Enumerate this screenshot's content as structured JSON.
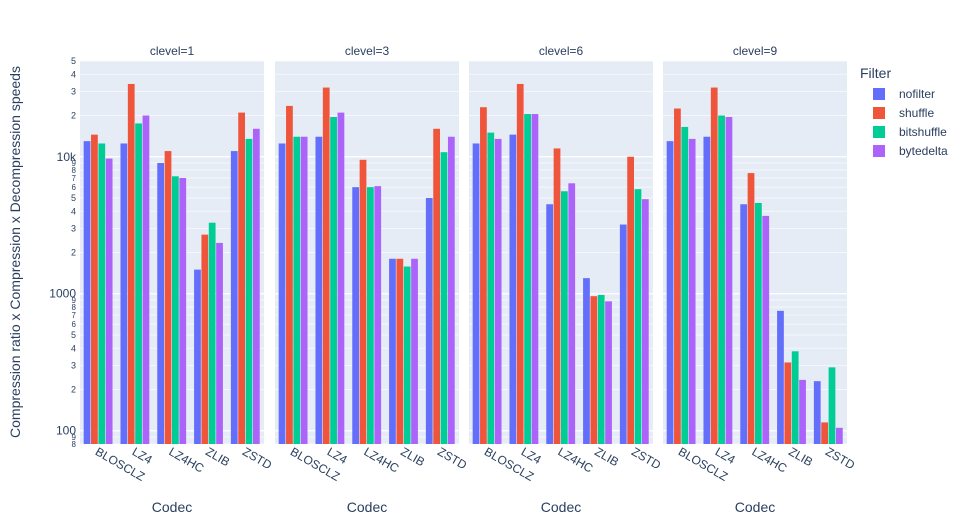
{
  "chart_data": {
    "type": "bar",
    "layout": "faceted",
    "yscale": "log",
    "ylabel": "Compression ratio x Compression x Decompression speeds",
    "xlabel": "Codec",
    "categories": [
      "BLOSCLZ",
      "LZ4",
      "LZ4HC",
      "ZLIB",
      "ZSTD"
    ],
    "legend": {
      "title": "Filter",
      "position": "right",
      "entries": [
        "nofilter",
        "shuffle",
        "bitshuffle",
        "bytedelta"
      ]
    },
    "colors": {
      "nofilter": "#636efa",
      "shuffle": "#ef553b",
      "bitshuffle": "#00cc96",
      "bytedelta": "#ab63fa"
    },
    "ylim": [
      80,
      50000
    ],
    "y_major_ticks": [
      {
        "value": 100,
        "label": "100"
      },
      {
        "value": 1000,
        "label": "1000"
      },
      {
        "value": 10000,
        "label": "10k"
      }
    ],
    "y_minor_labels": [
      "2",
      "3",
      "4",
      "5",
      "6",
      "7",
      "8",
      "9"
    ],
    "grid": true,
    "facets": [
      {
        "title": "clevel=1",
        "series": [
          {
            "name": "nofilter",
            "values": [
              13000,
              12500,
              9000,
              1500,
              11000
            ]
          },
          {
            "name": "shuffle",
            "values": [
              14500,
              34000,
              11000,
              2700,
              21000
            ]
          },
          {
            "name": "bitshuffle",
            "values": [
              12500,
              17500,
              7200,
              3300,
              13500
            ]
          },
          {
            "name": "bytedelta",
            "values": [
              9700,
              20000,
              7000,
              2350,
              16000
            ]
          }
        ]
      },
      {
        "title": "clevel=3",
        "series": [
          {
            "name": "nofilter",
            "values": [
              12500,
              14000,
              6000,
              1800,
              5000
            ]
          },
          {
            "name": "shuffle",
            "values": [
              23500,
              32000,
              9500,
              1800,
              16000
            ]
          },
          {
            "name": "bitshuffle",
            "values": [
              14000,
              19500,
              6000,
              1580,
              10800
            ]
          },
          {
            "name": "bytedelta",
            "values": [
              14000,
              21000,
              6100,
              1800,
              14000
            ]
          }
        ]
      },
      {
        "title": "clevel=6",
        "series": [
          {
            "name": "nofilter",
            "values": [
              12500,
              14500,
              4500,
              1300,
              3200
            ]
          },
          {
            "name": "shuffle",
            "values": [
              23000,
              34000,
              11500,
              960,
              10000
            ]
          },
          {
            "name": "bitshuffle",
            "values": [
              15000,
              20500,
              5600,
              980,
              5800
            ]
          },
          {
            "name": "bytedelta",
            "values": [
              13500,
              20500,
              6400,
              880,
              4900
            ]
          }
        ]
      },
      {
        "title": "clevel=9",
        "series": [
          {
            "name": "nofilter",
            "values": [
              13000,
              14000,
              4500,
              750,
              230
            ]
          },
          {
            "name": "shuffle",
            "values": [
              22500,
              32000,
              7600,
              315,
              115
            ]
          },
          {
            "name": "bitshuffle",
            "values": [
              16500,
              20000,
              4600,
              380,
              290
            ]
          },
          {
            "name": "bytedelta",
            "values": [
              13500,
              19500,
              3700,
              235,
              105
            ]
          }
        ]
      }
    ]
  }
}
